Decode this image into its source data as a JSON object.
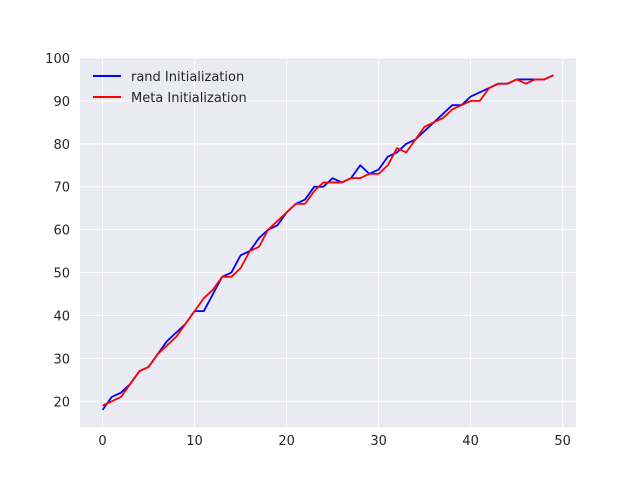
{
  "chart_data": {
    "type": "line",
    "title": "",
    "xlabel": "",
    "ylabel": "",
    "xlim": [
      -2.45,
      51.45
    ],
    "ylim": [
      14,
      100
    ],
    "x_ticks": [
      "0",
      "10",
      "20",
      "30",
      "40",
      "50"
    ],
    "y_ticks": [
      "20",
      "30",
      "40",
      "50",
      "60",
      "70",
      "80",
      "90",
      "100"
    ],
    "grid": true,
    "legend_position": "top-left",
    "background_color": "#eaeaf2",
    "grid_color": "#ffffff",
    "x": [
      0,
      1,
      2,
      3,
      4,
      5,
      6,
      7,
      8,
      9,
      10,
      11,
      12,
      13,
      14,
      15,
      16,
      17,
      18,
      19,
      20,
      21,
      22,
      23,
      24,
      25,
      26,
      27,
      28,
      29,
      30,
      31,
      32,
      33,
      34,
      35,
      36,
      37,
      38,
      39,
      40,
      41,
      42,
      43,
      44,
      45,
      46,
      47,
      48,
      49
    ],
    "series": [
      {
        "name": "rand Initialization",
        "color": "#0000ff",
        "values": [
          18,
          21,
          22,
          24,
          27,
          28,
          31,
          34,
          36,
          38,
          41,
          41,
          45,
          49,
          50,
          54,
          55,
          58,
          60,
          61,
          64,
          66,
          67,
          70,
          70,
          72,
          71,
          72,
          75,
          73,
          74,
          77,
          78,
          80,
          81,
          83,
          85,
          87,
          89,
          89,
          91,
          92,
          93,
          94,
          94,
          95,
          95,
          95,
          95,
          96
        ]
      },
      {
        "name": "Meta Initialization",
        "color": "#ff0000",
        "values": [
          19,
          20,
          21,
          24,
          27,
          28,
          31,
          33,
          35,
          38,
          41,
          44,
          46,
          49,
          49,
          51,
          55,
          56,
          60,
          62,
          64,
          66,
          66,
          69,
          71,
          71,
          71,
          72,
          72,
          73,
          73,
          75,
          79,
          78,
          81,
          84,
          85,
          86,
          88,
          89,
          90,
          90,
          93,
          94,
          94,
          95,
          94,
          95,
          95,
          96
        ]
      }
    ]
  }
}
